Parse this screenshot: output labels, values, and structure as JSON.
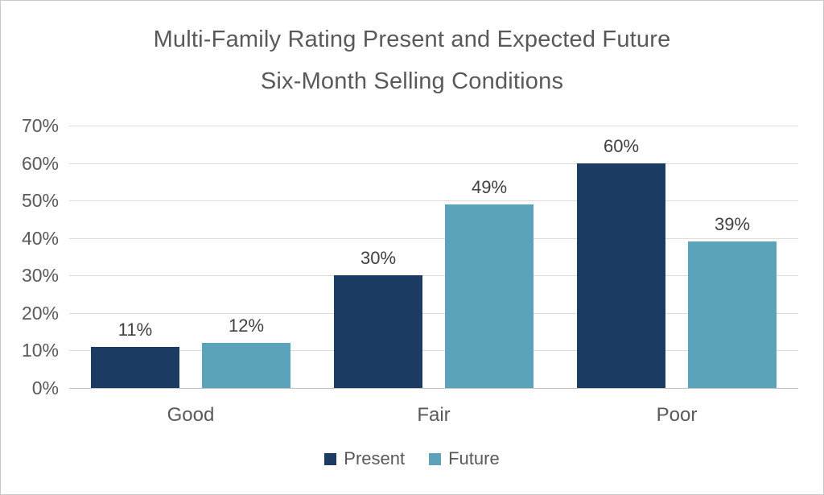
{
  "chart_data": {
    "type": "bar",
    "title": "Multi-Family Rating Present and Expected Future Six-Month Selling Conditions",
    "title_lines": [
      "Multi-Family Rating Present and Expected Future",
      "Six-Month Selling Conditions"
    ],
    "categories": [
      "Good",
      "Fair",
      "Poor"
    ],
    "series": [
      {
        "name": "Present",
        "color": "#1c3b62",
        "values": [
          11,
          30,
          60
        ],
        "labels": [
          "11%",
          "30%",
          "60%"
        ]
      },
      {
        "name": "Future",
        "color": "#5aa3ba",
        "values": [
          12,
          49,
          39
        ],
        "labels": [
          "12%",
          "49%",
          "39%"
        ]
      }
    ],
    "xlabel": "",
    "ylabel": "",
    "ylim": [
      0,
      70
    ],
    "ytick_step": 10,
    "y_ticks": [
      "70%",
      "60%",
      "50%",
      "40%",
      "30%",
      "20%",
      "10%",
      "0%"
    ],
    "grid": true,
    "legend_position": "bottom",
    "colors": {
      "grid": "#dcdcdc",
      "axis_line": "#bfbfbf",
      "title_text": "#595959",
      "tick_text": "#595959",
      "data_label_text": "#404040",
      "frame_border": "#c9c9c9",
      "background": "#ffffff"
    }
  }
}
